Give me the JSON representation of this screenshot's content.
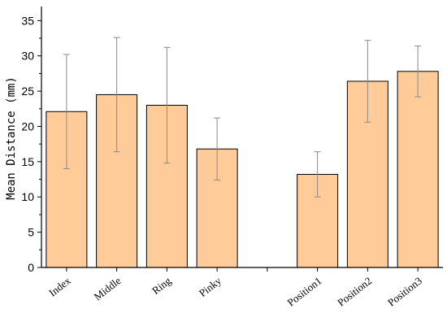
{
  "chart_data": {
    "type": "bar",
    "categories": [
      "Index",
      "Middle",
      "Ring",
      "Pinky",
      "",
      "Position1",
      "Position2",
      "Position3"
    ],
    "values": [
      22.1,
      24.5,
      23.0,
      16.8,
      null,
      13.2,
      26.4,
      27.8
    ],
    "errors": [
      8.1,
      8.1,
      8.2,
      4.4,
      null,
      3.2,
      5.8,
      3.6
    ],
    "ylabel": "Mean Distance (mm)",
    "xlabel": "",
    "title": "",
    "ylim": [
      0,
      37
    ],
    "yticks": [
      0,
      5,
      10,
      15,
      20,
      25,
      30,
      35
    ],
    "bar_color": "#FFCC99",
    "error_bar_color": "#8A8A8A",
    "grid": false,
    "legend": "none"
  }
}
